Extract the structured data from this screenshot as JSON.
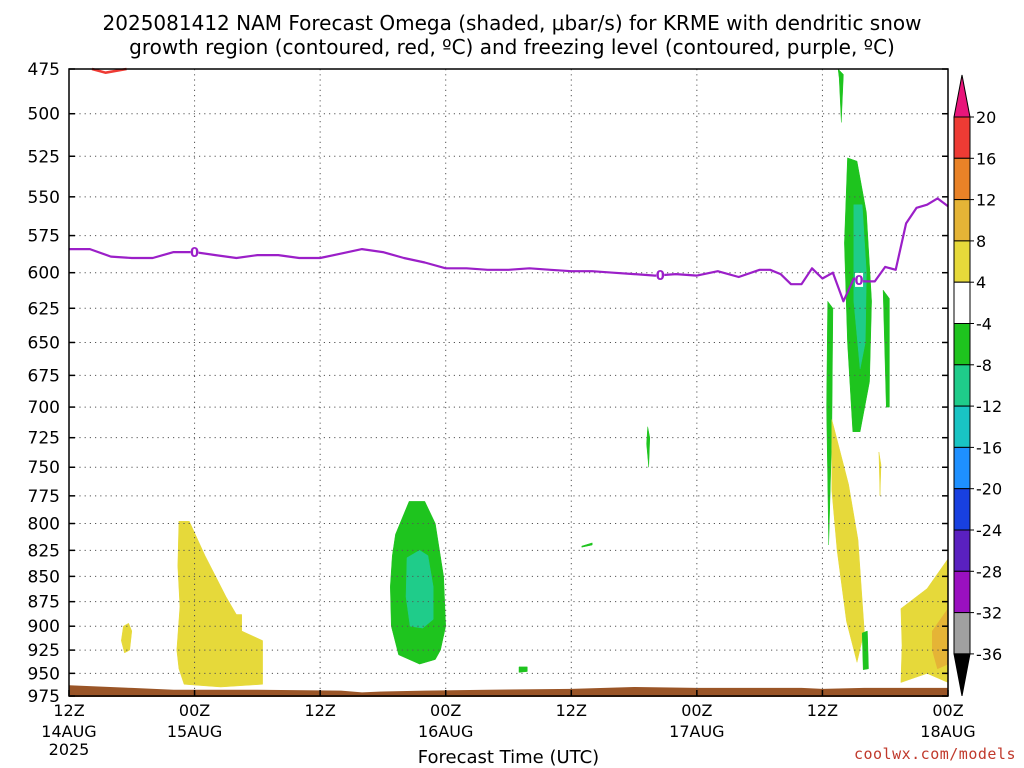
{
  "title_line1": "2025081412 NAM Forecast Omega (shaded, μbar/s) for KRME with dendritic snow",
  "title_line2": "growth region (contoured, red, ºC) and freezing level (contoured, purple, ºC)",
  "credit": "coolwx.com/models",
  "chart_data": {
    "type": "heatmap",
    "xlabel": "Forecast Time (UTC)",
    "ylabel": "",
    "x_unit": "hours from 2025-08-14 12Z",
    "xlim": [
      0,
      84
    ],
    "ylim": [
      975,
      475
    ],
    "y_ticks": [
      475,
      500,
      525,
      550,
      575,
      600,
      625,
      650,
      675,
      700,
      725,
      750,
      775,
      800,
      825,
      850,
      875,
      900,
      925,
      950,
      975
    ],
    "x_ticks": [
      {
        "x": 0,
        "l1": "12Z",
        "l2": "14AUG",
        "l3": "2025"
      },
      {
        "x": 12,
        "l1": "00Z",
        "l2": "15AUG",
        "l3": ""
      },
      {
        "x": 24,
        "l1": "12Z",
        "l2": "",
        "l3": ""
      },
      {
        "x": 36,
        "l1": "00Z",
        "l2": "16AUG",
        "l3": ""
      },
      {
        "x": 48,
        "l1": "12Z",
        "l2": "",
        "l3": ""
      },
      {
        "x": 60,
        "l1": "00Z",
        "l2": "17AUG",
        "l3": ""
      },
      {
        "x": 72,
        "l1": "12Z",
        "l2": "",
        "l3": ""
      },
      {
        "x": 84,
        "l1": "00Z",
        "l2": "18AUG",
        "l3": ""
      }
    ],
    "grid": true,
    "colorbar": {
      "labels": [
        "20",
        "16",
        "12",
        "8",
        "4",
        "-4",
        "-8",
        "-12",
        "-16",
        "-20",
        "-24",
        "-28",
        "-32",
        "-36"
      ],
      "colors": [
        "#e8157a",
        "#ee3b34",
        "#e98227",
        "#e5b436",
        "#e6d93a",
        "#ffffff",
        "#1ec41e",
        "#1fcc8a",
        "#19c4c4",
        "#1e90ff",
        "#1840e0",
        "#5a20c0",
        "#9a10c0",
        "#a0a0a0",
        "#000000"
      ]
    },
    "freezing_level": {
      "label": "0",
      "color": "#9b1fc8",
      "x": [
        0,
        2,
        4,
        6,
        8,
        10,
        12,
        14,
        16,
        18,
        20,
        22,
        24,
        26,
        28,
        30,
        32,
        34,
        36,
        38,
        40,
        42,
        44,
        46,
        48,
        50,
        52,
        54,
        56,
        58,
        60,
        62,
        64,
        66,
        67,
        68,
        69,
        70,
        71,
        72,
        73,
        74,
        75,
        76,
        77,
        78,
        79,
        80,
        81,
        82,
        83,
        84
      ],
      "p": [
        584,
        584,
        589,
        590,
        590,
        586,
        586,
        588,
        590,
        588,
        588,
        590,
        590,
        587,
        584,
        586,
        590,
        593,
        597,
        597,
        598,
        598,
        597,
        598,
        599,
        599,
        600,
        601,
        602,
        601,
        602,
        599,
        603,
        598,
        598,
        601,
        608,
        608,
        597,
        604,
        600,
        620,
        604,
        606,
        606,
        596,
        598,
        567,
        557,
        555,
        551,
        556
      ]
    },
    "dgz_contour": {
      "color": "#ee3b34",
      "x": [
        2.2,
        3.5,
        5.5
      ],
      "p": [
        475,
        477,
        475
      ]
    },
    "omega_regions": [
      {
        "level": "4",
        "color": "#e6d93a",
        "x": [
          10.5,
          11.5,
          13,
          15,
          16,
          16.5,
          16.5,
          18.5,
          18.5,
          14.5,
          11,
          10.5,
          10.3,
          10.6,
          10.4
        ],
        "p": [
          798,
          798,
          830,
          870,
          888,
          888,
          905,
          915,
          962,
          965,
          962,
          945,
          925,
          880,
          840
        ]
      },
      {
        "level": "4",
        "color": "#e6d93a",
        "x": [
          5.2,
          5.7,
          6.0,
          5.8,
          5.3,
          5.0
        ],
        "p": [
          900,
          897,
          905,
          925,
          928,
          915
        ]
      },
      {
        "level": "-4",
        "color": "#1ec41e",
        "x": [
          31.2,
          32.5,
          34.0,
          35.0,
          35.8,
          36.0,
          35.5,
          35.0,
          33.5,
          31.5,
          30.8,
          30.7,
          30.9
        ],
        "p": [
          810,
          780,
          780,
          800,
          850,
          900,
          925,
          935,
          940,
          930,
          900,
          860,
          830
        ]
      },
      {
        "level": "-8",
        "color": "#1fcc8a",
        "x": [
          32.3,
          33.5,
          34.3,
          34.8,
          34.8,
          33.8,
          32.6,
          32.2
        ],
        "p": [
          832,
          825,
          830,
          860,
          893,
          902,
          900,
          870
        ]
      },
      {
        "level": "-4",
        "color": "#1ec41e",
        "x": [
          43.0,
          43.8,
          43.8,
          43.0
        ],
        "p": [
          943,
          943,
          948,
          949
        ]
      },
      {
        "level": "-4",
        "color": "#1ec41e",
        "x": [
          49.0,
          50.0,
          50.0,
          49.0
        ],
        "p": [
          821,
          818,
          820,
          822
        ]
      },
      {
        "level": "-4",
        "color": "#1ec41e",
        "x": [
          55.3,
          55.5,
          55.4,
          55.2
        ],
        "p": [
          716,
          725,
          750,
          730
        ]
      },
      {
        "level": "-4",
        "color": "#1ec41e",
        "x": [
          73.5,
          74.0,
          73.8,
          73.6
        ],
        "p": [
          475,
          478,
          505,
          480
        ]
      },
      {
        "level": "-4",
        "color": "#1ec41e",
        "x": [
          72.5,
          73.0,
          72.9,
          72.6,
          72.4
        ],
        "p": [
          620,
          625,
          720,
          820,
          700
        ]
      },
      {
        "level": "4",
        "color": "#e6d93a",
        "x": [
          72.9,
          73.2,
          74.5,
          75.4,
          76.0,
          75.3,
          74.3,
          73.4,
          72.9
        ],
        "p": [
          710,
          720,
          765,
          815,
          905,
          938,
          895,
          825,
          770
        ]
      },
      {
        "level": "-4",
        "color": "#1ec41e",
        "x": [
          74.4,
          75.3,
          76.2,
          76.7,
          76.5,
          75.6,
          74.9,
          74.4,
          74.1
        ],
        "p": [
          526,
          528,
          560,
          620,
          680,
          720,
          720,
          650,
          580
        ]
      },
      {
        "level": "-8",
        "color": "#1fcc8a",
        "x": [
          75.0,
          75.8,
          76.2,
          76.1,
          75.6,
          75.0
        ],
        "p": [
          555,
          555,
          600,
          650,
          670,
          620
        ]
      },
      {
        "level": "-4",
        "color": "#1ec41e",
        "x": [
          77.8,
          78.4,
          78.4,
          78.1
        ],
        "p": [
          612,
          618,
          700,
          700
        ]
      },
      {
        "level": "4",
        "color": "#e6d93a",
        "x": [
          77.4,
          77.6,
          77.5
        ],
        "p": [
          737,
          748,
          775
        ]
      },
      {
        "level": "-4",
        "color": "#1ec41e",
        "x": [
          75.8,
          76.3,
          76.4,
          75.9
        ],
        "p": [
          907,
          905,
          945,
          946
        ]
      },
      {
        "level": "4",
        "color": "#e6d93a",
        "x": [
          79.5,
          82.0,
          84.0,
          84.0,
          82.0,
          79.5,
          79.6
        ],
        "p": [
          882,
          862,
          833,
          960,
          950,
          960,
          920
        ]
      },
      {
        "level": "8",
        "color": "#e5b436",
        "x": [
          82.5,
          84.0,
          84.0,
          83.0,
          82.5
        ],
        "p": [
          905,
          882,
          940,
          945,
          925
        ]
      }
    ],
    "terrain": {
      "color": "#9a5527",
      "x": [
        0,
        6,
        10,
        18,
        26,
        28,
        30,
        34,
        40,
        48,
        54,
        60,
        66,
        70,
        72,
        76,
        80,
        84
      ],
      "p": [
        963,
        966,
        968,
        968,
        969,
        971,
        970,
        969,
        968,
        967,
        965,
        966,
        966,
        966,
        967,
        966,
        966,
        966
      ]
    }
  }
}
